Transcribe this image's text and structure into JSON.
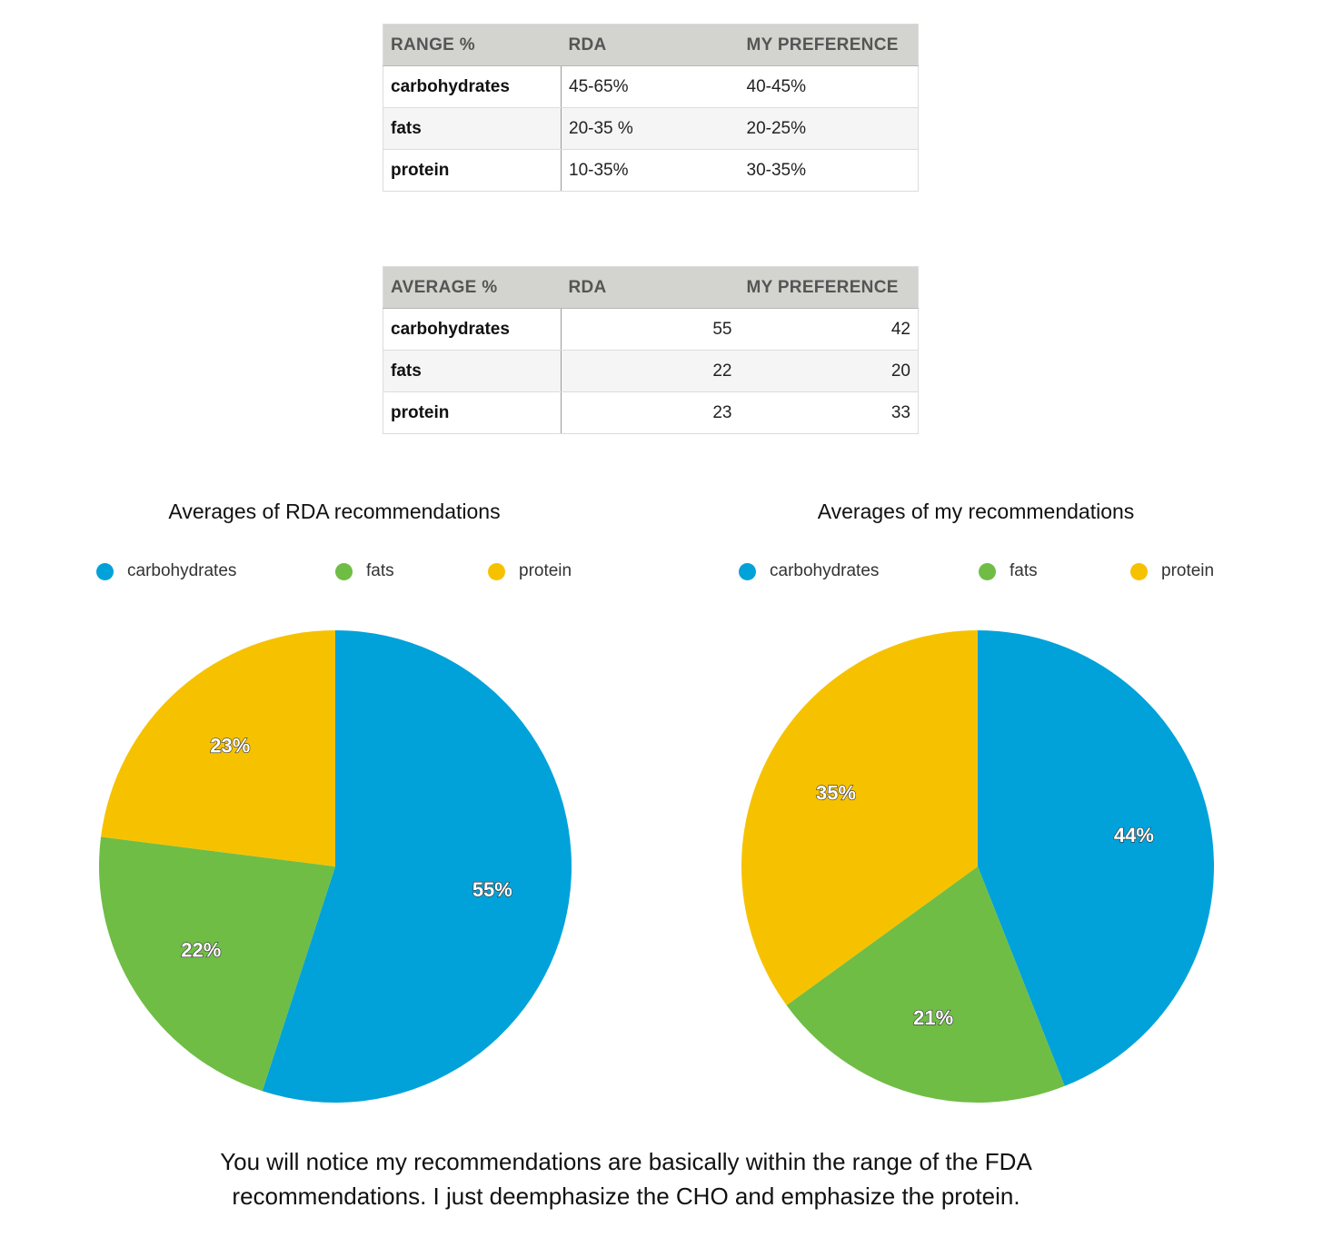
{
  "range_table": {
    "headers": [
      "RANGE %",
      "RDA",
      "MY PREFERENCE"
    ],
    "rows": [
      {
        "label": "carbohydrates",
        "rda": "45-65%",
        "pref": "40-45%"
      },
      {
        "label": "fats",
        "rda": "20-35 %",
        "pref": "20-25%"
      },
      {
        "label": "protein",
        "rda": "10-35%",
        "pref": "30-35%"
      }
    ]
  },
  "average_table": {
    "headers": [
      "AVERAGE %",
      "RDA",
      "MY PREFERENCE"
    ],
    "rows": [
      {
        "label": "carbohydrates",
        "rda": "55",
        "pref": "42"
      },
      {
        "label": "fats",
        "rda": "22",
        "pref": "20"
      },
      {
        "label": "protein",
        "rda": "23",
        "pref": "33"
      }
    ]
  },
  "colors": {
    "carbohydrates": "#00a2d9",
    "fats": "#6fbd45",
    "protein": "#f6c200"
  },
  "chart_data": [
    {
      "type": "pie",
      "title": "Averages of RDA recommendations",
      "legend": "top",
      "categories": [
        "carbohydrates",
        "fats",
        "protein"
      ],
      "values": [
        55,
        22,
        23
      ],
      "labels": [
        "55%",
        "22%",
        "23%"
      ]
    },
    {
      "type": "pie",
      "title": "Averages of my recommendations",
      "legend": "top",
      "categories": [
        "carbohydrates",
        "fats",
        "protein"
      ],
      "values": [
        44,
        21,
        35
      ],
      "labels": [
        "44%",
        "21%",
        "35%"
      ]
    }
  ],
  "caption": {
    "line1": "You will notice my recommendations are basically within the range of the FDA",
    "line2": "recommendations. I just deemphasize the CHO and emphasize the protein."
  }
}
